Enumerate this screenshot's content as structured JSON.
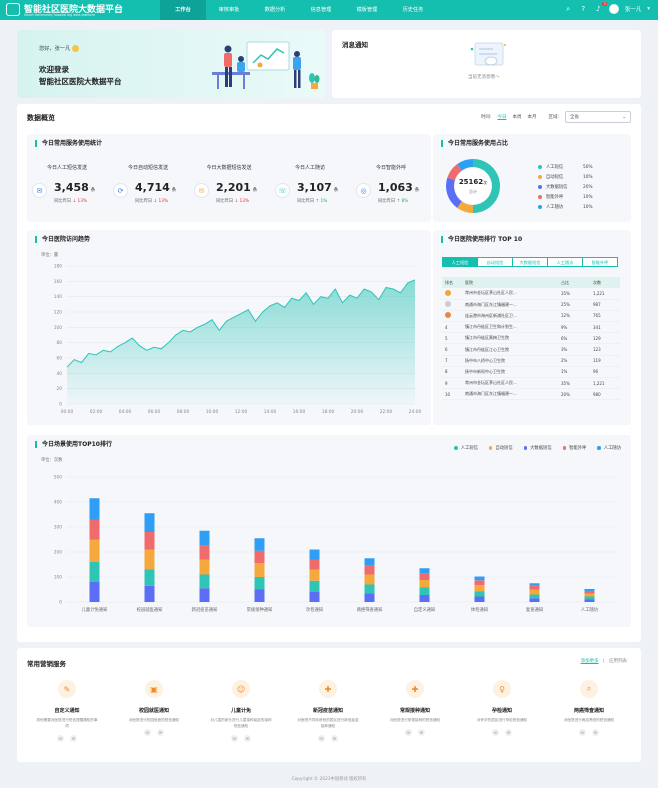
{
  "header": {
    "brand": "智能社区医院大数据平台",
    "brand_sub": "Smart community hospital big data platform",
    "nav": [
      "工作台",
      "审核审批",
      "数据分析",
      "信息管理",
      "模板管理",
      "历史任务"
    ],
    "active_nav": 0,
    "notification_count": "3",
    "user_name": "张一凡"
  },
  "welcome": {
    "greeting": "您好，张一凡",
    "line1": "欢迎登录",
    "line2": "智能社区医院大数据平台"
  },
  "messages": {
    "title": "消息通知",
    "empty": "当前无消息哦～"
  },
  "overview": {
    "title": "数据概览",
    "time_label": "时间:",
    "time_options": [
      "今日",
      "本周",
      "本月"
    ],
    "region_label": "区域:",
    "region_value": "全省"
  },
  "stats": {
    "title": "今日常用服务使用统计",
    "items": [
      {
        "label": "今日人工短信发送",
        "value": "3,458",
        "unit": "条",
        "cmp": "同比昨日",
        "delta": "13%",
        "dir": "down",
        "icon": "✉"
      },
      {
        "label": "今日自动短信发送",
        "value": "4,714",
        "unit": "条",
        "cmp": "同比昨日",
        "delta": "13%",
        "dir": "down",
        "icon": "⟳"
      },
      {
        "label": "今日大数据短信发送",
        "value": "2,201",
        "unit": "条",
        "cmp": "同比昨日",
        "delta": "13%",
        "dir": "down",
        "icon": "✉"
      },
      {
        "label": "今日人工随访",
        "value": "3,107",
        "unit": "条",
        "cmp": "同比昨日",
        "delta": "1%",
        "dir": "up",
        "icon": "☏"
      },
      {
        "label": "今日智能外呼",
        "value": "1,063",
        "unit": "条",
        "cmp": "同比昨日",
        "delta": "8%",
        "dir": "up",
        "icon": "◎"
      }
    ]
  },
  "usage": {
    "title": "今日常用服务使用占比",
    "total": "25162",
    "total_unit": "次",
    "total_label": "总计",
    "items": [
      {
        "name": "人工短信",
        "pct": "50%",
        "value": 50,
        "color": "#2ec4b6"
      },
      {
        "name": "自动短信",
        "pct": "10%",
        "value": 10,
        "color": "#f5a93c"
      },
      {
        "name": "大数据短信",
        "pct": "20%",
        "value": 20,
        "color": "#5b6ef5"
      },
      {
        "name": "智能外呼",
        "pct": "10%",
        "value": 10,
        "color": "#f06c6c"
      },
      {
        "name": "人工随访",
        "pct": "10%",
        "value": 10,
        "color": "#2f9ef5"
      }
    ]
  },
  "trend": {
    "title": "今日医院访问趋势",
    "unit": "单位：量"
  },
  "ranking": {
    "title": "今日医院使用排行 TOP 10",
    "tabs": [
      "人工短信",
      "自动短信",
      "大数据短信",
      "人工随访",
      "智能外呼"
    ],
    "columns": [
      "排名",
      "医院",
      "占比",
      "次数"
    ],
    "rows": [
      {
        "rank": "1",
        "name": "常州市金坛区茅山社区人民...",
        "pct": "35%",
        "count": "1,221"
      },
      {
        "rank": "2",
        "name": "南通市海门区东江镇福建一...",
        "pct": "25%",
        "count": "987"
      },
      {
        "rank": "3",
        "name": "连云港市海州区新浦社区卫...",
        "pct": "12%",
        "count": "765"
      },
      {
        "rank": "4",
        "name": "镇江市丹徒区卫生和计划生...",
        "pct": "9%",
        "count": "341"
      },
      {
        "rank": "5",
        "name": "镇江市丹徒区黄梅卫生院",
        "pct": "6%",
        "count": "129"
      },
      {
        "rank": "6",
        "name": "镇江市丹徒区江心卫生院",
        "pct": "3%",
        "count": "123"
      },
      {
        "rank": "7",
        "name": "扬中市八桥中心卫生院",
        "pct": "2%",
        "count": "119"
      },
      {
        "rank": "8",
        "name": "扬中市新坝中心卫生院",
        "pct": "1%",
        "count": "96"
      },
      {
        "rank": "9",
        "name": "常州市金坛区茅山社区人民...",
        "pct": "35%",
        "count": "1,221"
      },
      {
        "rank": "10",
        "name": "南通市海门区东江镇福建一...",
        "pct": "20%",
        "count": "980"
      }
    ]
  },
  "scene": {
    "title": "今日场景使用TOP10排行",
    "unit": "单位：次数"
  },
  "services": {
    "title": "常用营销服务",
    "link_active": "添加更多",
    "link_other": "应用列表",
    "items": [
      {
        "name": "自定义通知",
        "desc": "其他需要对医院进行短信提醒通知的事项",
        "icon": "✎"
      },
      {
        "name": "校园就医通知",
        "desc": "对医院进行校园就医的短信通知",
        "icon": "▣"
      },
      {
        "name": "儿童计免",
        "desc": "对儿童的家长进行儿童接种疫苗的接种短信通知",
        "icon": "☺"
      },
      {
        "name": "新冠疫苗通知",
        "desc": "对医院不同年龄段的居民进行新冠疫苗接种通知",
        "icon": "✚"
      },
      {
        "name": "常规接种通知",
        "desc": "对医院进行常规接种的短信通知",
        "icon": "✚"
      },
      {
        "name": "孕检通知",
        "desc": "对怀孕的居民进行孕检短信通知",
        "icon": "♀"
      },
      {
        "name": "两癌筛查通知",
        "desc": "对医院进行两癌筛查的短信通知",
        "icon": "⌕"
      }
    ]
  },
  "footer": "Copyright © 2023中国移动  版权所有",
  "chart_data": [
    {
      "type": "area",
      "ylabel": "单位：量",
      "ylim": [
        0,
        180
      ],
      "yticks": [
        0,
        20,
        40,
        60,
        80,
        100,
        120,
        140,
        160,
        180
      ],
      "xticks": [
        "00:00",
        "02:00",
        "04:00",
        "06:00",
        "08:00",
        "10:00",
        "12:00",
        "14:00",
        "16:00",
        "18:00",
        "20:00",
        "22:00",
        "24:00"
      ],
      "x": [
        0,
        0.5,
        1,
        1.5,
        2,
        2.5,
        3,
        3.5,
        4,
        4.5,
        5,
        5.5,
        6,
        6.5,
        7,
        7.5,
        8,
        8.5,
        9,
        9.5,
        10,
        10.5,
        11,
        11.5,
        12,
        12.5,
        13,
        13.5,
        14,
        14.5,
        15,
        15.5,
        16,
        16.5,
        17,
        17.5,
        18,
        18.5,
        19,
        19.5,
        20,
        20.5,
        21,
        21.5,
        22,
        22.5,
        23,
        23.5,
        24
      ],
      "y": [
        48,
        58,
        54,
        66,
        64,
        70,
        68,
        75,
        80,
        86,
        76,
        70,
        74,
        72,
        80,
        90,
        96,
        94,
        100,
        104,
        110,
        96,
        108,
        113,
        118,
        123,
        108,
        120,
        128,
        132,
        126,
        138,
        135,
        145,
        130,
        140,
        138,
        150,
        132,
        142,
        138,
        150,
        146,
        136,
        152,
        150,
        145,
        158,
        162
      ]
    },
    {
      "type": "bar",
      "stacked": true,
      "ylabel": "单位：次数",
      "ylim": [
        0,
        500
      ],
      "yticks": [
        0,
        100,
        200,
        300,
        400,
        500
      ],
      "categories": [
        "儿童计免通知",
        "校园就医通知",
        "新冠疫苗通知",
        "常规接种通知",
        "孕检通知",
        "两癌筛查通知",
        "自定义通知",
        "体检通知",
        "复查通知",
        "人工随访"
      ],
      "series": [
        {
          "name": "人工短信",
          "color": "#2f9ef5",
          "values": [
            85,
            75,
            60,
            50,
            40,
            30,
            22,
            15,
            10,
            8
          ]
        },
        {
          "name": "自动短信",
          "color": "#f06c6c",
          "values": [
            80,
            70,
            55,
            50,
            40,
            35,
            25,
            20,
            15,
            10
          ]
        },
        {
          "name": "大数据短信",
          "color": "#f5a93c",
          "values": [
            90,
            80,
            60,
            55,
            45,
            40,
            30,
            25,
            20,
            12
          ]
        },
        {
          "name": "智能外呼",
          "color": "#2ec4b6",
          "values": [
            80,
            65,
            55,
            50,
            45,
            35,
            30,
            20,
            15,
            12
          ]
        },
        {
          "name": "人工随访",
          "color": "#5b6ef5",
          "values": [
            80,
            65,
            55,
            50,
            40,
            35,
            28,
            22,
            15,
            10
          ]
        }
      ]
    }
  ]
}
